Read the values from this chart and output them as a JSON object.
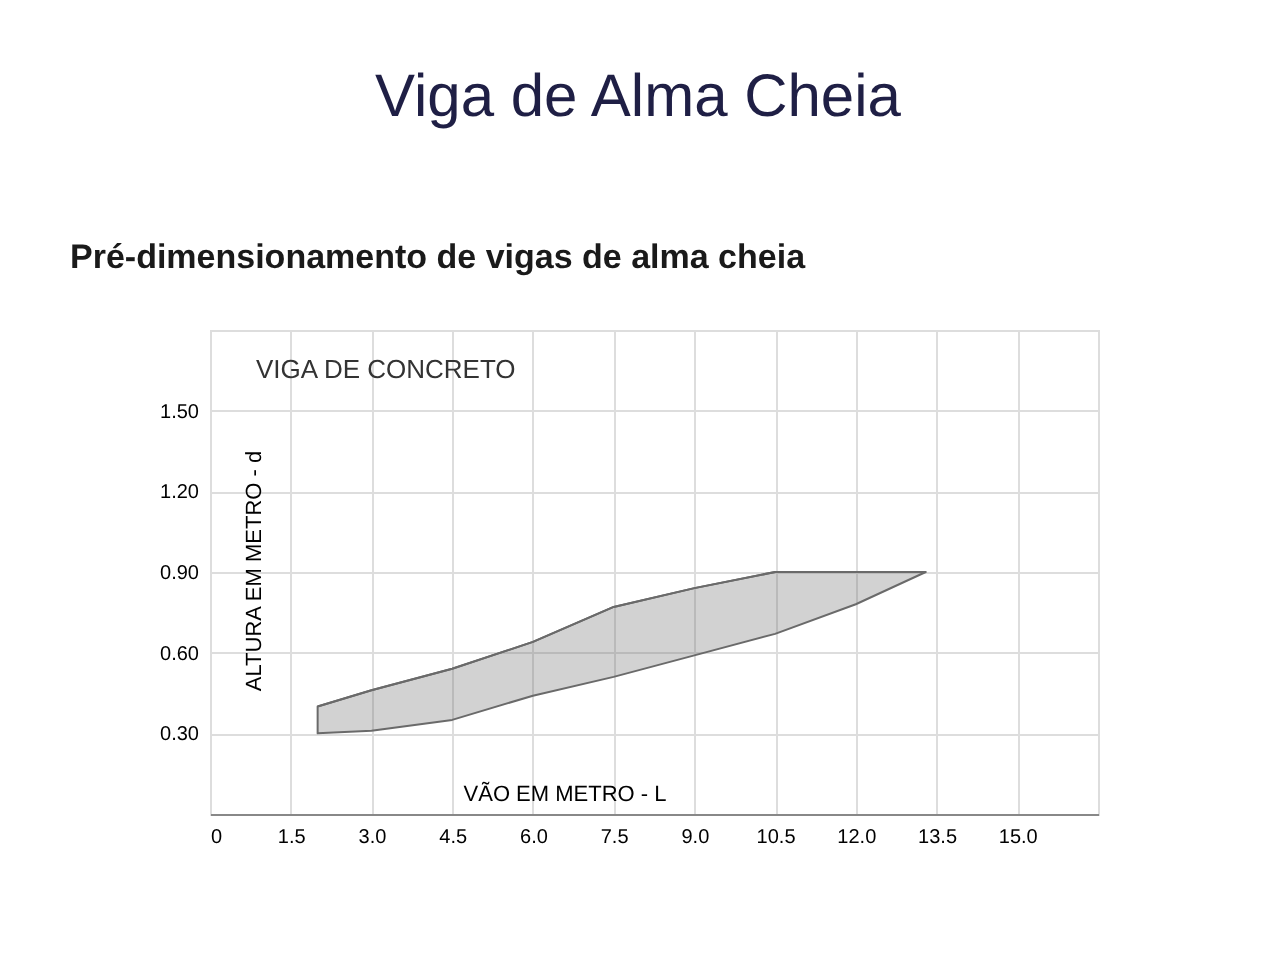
{
  "chart_data": {
    "type": "line",
    "title": "Viga de Alma Cheia",
    "subtitle": "Pré-dimensionamento de vigas de alma cheia",
    "xlabel": "VÃO EM METRO - L",
    "ylabel": "ALTURA EM METRO - d",
    "annotations": [
      "VIGA DE CONCRETO"
    ],
    "x": [
      2.0,
      3.0,
      4.5,
      6.0,
      7.5,
      9.0,
      10.5,
      12.0,
      13.3
    ],
    "series": [
      {
        "color": "#6a6a6a",
        "values": [
          0.4,
          0.46,
          0.54,
          0.64,
          0.77,
          0.84,
          0.9,
          0.9,
          0.9
        ],
        "lower": [
          0.3,
          0.31,
          0.35,
          0.44,
          0.51,
          0.59,
          0.67,
          0.78,
          0.9
        ],
        "upper": [
          0.4,
          0.46,
          0.54,
          0.64,
          0.77,
          0.84,
          0.9,
          0.9,
          0.9
        ]
      }
    ],
    "xlim": [
      0,
      16.5
    ],
    "ylim": [
      0,
      1.8
    ],
    "xticks": [
      0,
      1.5,
      {
        "value": 3,
        "label": "3.0"
      },
      4.5,
      {
        "value": 6,
        "label": "6.0"
      },
      7.5,
      {
        "value": 9,
        "label": "9.0"
      },
      10.5,
      {
        "value": 12,
        "label": "12.0"
      },
      13.5,
      {
        "value": 15,
        "label": "15.0"
      }
    ],
    "yticks": [
      {
        "value": 0.3,
        "label": "0.30"
      },
      {
        "value": 0.6,
        "label": "0.60"
      },
      {
        "value": 0.9,
        "label": "0.90"
      },
      {
        "value": 1.2,
        "label": "1.20"
      },
      {
        "value": 1.5,
        "label": "1.50"
      }
    ],
    "grid": true
  }
}
